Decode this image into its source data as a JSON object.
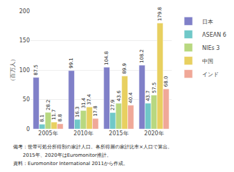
{
  "chart_data": {
    "type": "bar",
    "categories": [
      "2005年",
      "2010年",
      "2015年",
      "2020年"
    ],
    "series": [
      {
        "name": "日本",
        "color": "#8080c8",
        "values": [
          87.5,
          99.1,
          104.8,
          108.2
        ],
        "value_labels": [
          "87.5",
          "99.1",
          "104.8",
          "108.2"
        ]
      },
      {
        "name": "ASEAN 6",
        "color": "#70c8c8",
        "values": [
          8.1,
          16.3,
          27.9,
          43.7
        ],
        "value_labels": [
          "8.1",
          "16.3",
          "27.9",
          "43.7"
        ]
      },
      {
        "name": "NIEs 3",
        "color": "#b8d880",
        "values": [
          28.2,
          31.4,
          43.6,
          57.5
        ],
        "value_labels": [
          "28.2",
          "31.4",
          "43.6",
          "57.5"
        ]
      },
      {
        "name": "中国",
        "color": "#e8d060",
        "values": [
          11.7,
          37.4,
          89.9,
          179.8
        ],
        "value_labels": [
          "11.7",
          "37.4",
          "89.9",
          "179.8"
        ]
      },
      {
        "name": "インド",
        "color": "#f0a898",
        "values": [
          8.8,
          17.8,
          40.4,
          68.0
        ],
        "value_labels": [
          "8.8",
          "17.8",
          "40.4",
          "68.0"
        ]
      }
    ],
    "ylabel": "（百万人）",
    "ylim": [
      0,
      200
    ],
    "yticks": [
      0,
      50,
      100,
      150,
      200
    ],
    "grid": true,
    "legend": "upper right",
    "data_labels": true,
    "annotations": [
      "備考：世帯可処分所得別の家計人口。各所得層の家計比率×人口で算出。",
      "　　2015年、2020年はEuromonitor推計。",
      "資料：Euromonitor International 2011から作成。"
    ]
  }
}
